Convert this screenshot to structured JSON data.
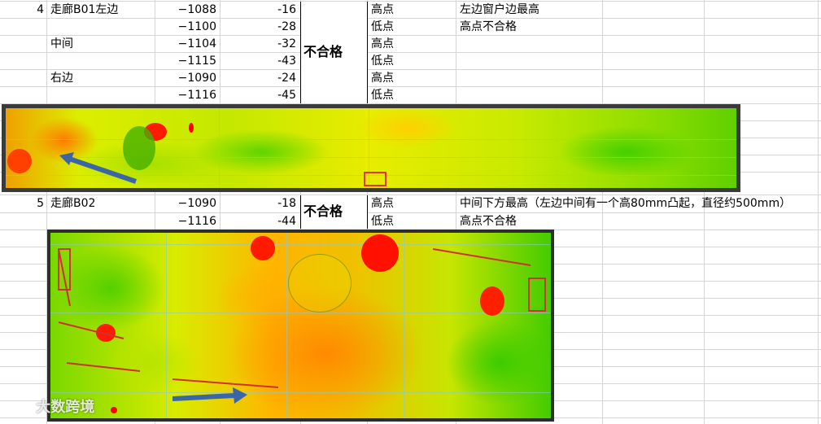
{
  "rows": {
    "r1": {
      "no": "4",
      "loc": "走廊B01左边",
      "v1": "−1088",
      "v2": "-16",
      "type": "高点",
      "remark": "左边窗户边最高"
    },
    "r2": {
      "v1": "−1100",
      "v2": "-28",
      "type": "低点",
      "remark": "高点不合格"
    },
    "r3": {
      "loc": "中间",
      "v1": "−1104",
      "v2": "-32",
      "type": "高点"
    },
    "r4": {
      "v1": "−1115",
      "v2": "-43",
      "type": "低点"
    },
    "r5": {
      "loc": "右边",
      "v1": "−1090",
      "v2": "-24",
      "type": "高点"
    },
    "r6": {
      "v1": "−1116",
      "v2": "-45",
      "type": "低点"
    },
    "r7": {
      "no": "5",
      "loc": "走廊B02",
      "v1": "−1090",
      "v2": "-18",
      "type": "高点",
      "remark": "中间下方最高（左边中间有一个高80mm凸起，直径约500mm）"
    },
    "r8": {
      "v1": "−1116",
      "v2": "-44",
      "type": "低点",
      "remark": "高点不合格"
    }
  },
  "result1": "不合格",
  "result2": "不合格",
  "watermark": "大数跨境",
  "icons": [
    "watermark-logo-icon",
    "arrow-icon"
  ],
  "colors": {
    "grid": "#d4d4d4",
    "high": "#ff0000",
    "mid": "#ffdd00",
    "low": "#33cc00"
  }
}
